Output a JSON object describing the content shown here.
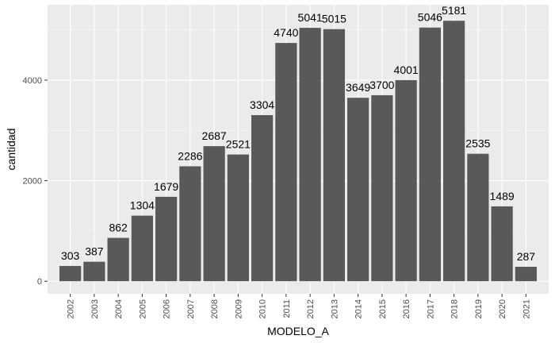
{
  "chart_data": {
    "type": "bar",
    "categories": [
      "2002",
      "2003",
      "2004",
      "2005",
      "2006",
      "2007",
      "2008",
      "2009",
      "2010",
      "2011",
      "2012",
      "2013",
      "2014",
      "2015",
      "2016",
      "2017",
      "2018",
      "2019",
      "2020",
      "2021"
    ],
    "values": [
      303,
      387,
      862,
      1304,
      1679,
      2286,
      2687,
      2521,
      3304,
      4740,
      5041,
      5015,
      3649,
      3700,
      4001,
      5046,
      5181,
      2535,
      1489,
      287
    ],
    "title": "",
    "xlabel": "MODELO_A",
    "ylabel": "cantidad",
    "ylim": [
      -250,
      5500
    ],
    "yticks": [
      0,
      2000,
      4000
    ],
    "ytick_labels": [
      "0",
      "2000",
      "4000"
    ],
    "grid": true,
    "data_labels": true,
    "colors": {
      "panel_background": "#ebebeb",
      "grid_major": "#ffffff",
      "bar_fill": "#595959",
      "text": "#000000",
      "tick_text": "#4d4d4d"
    }
  }
}
